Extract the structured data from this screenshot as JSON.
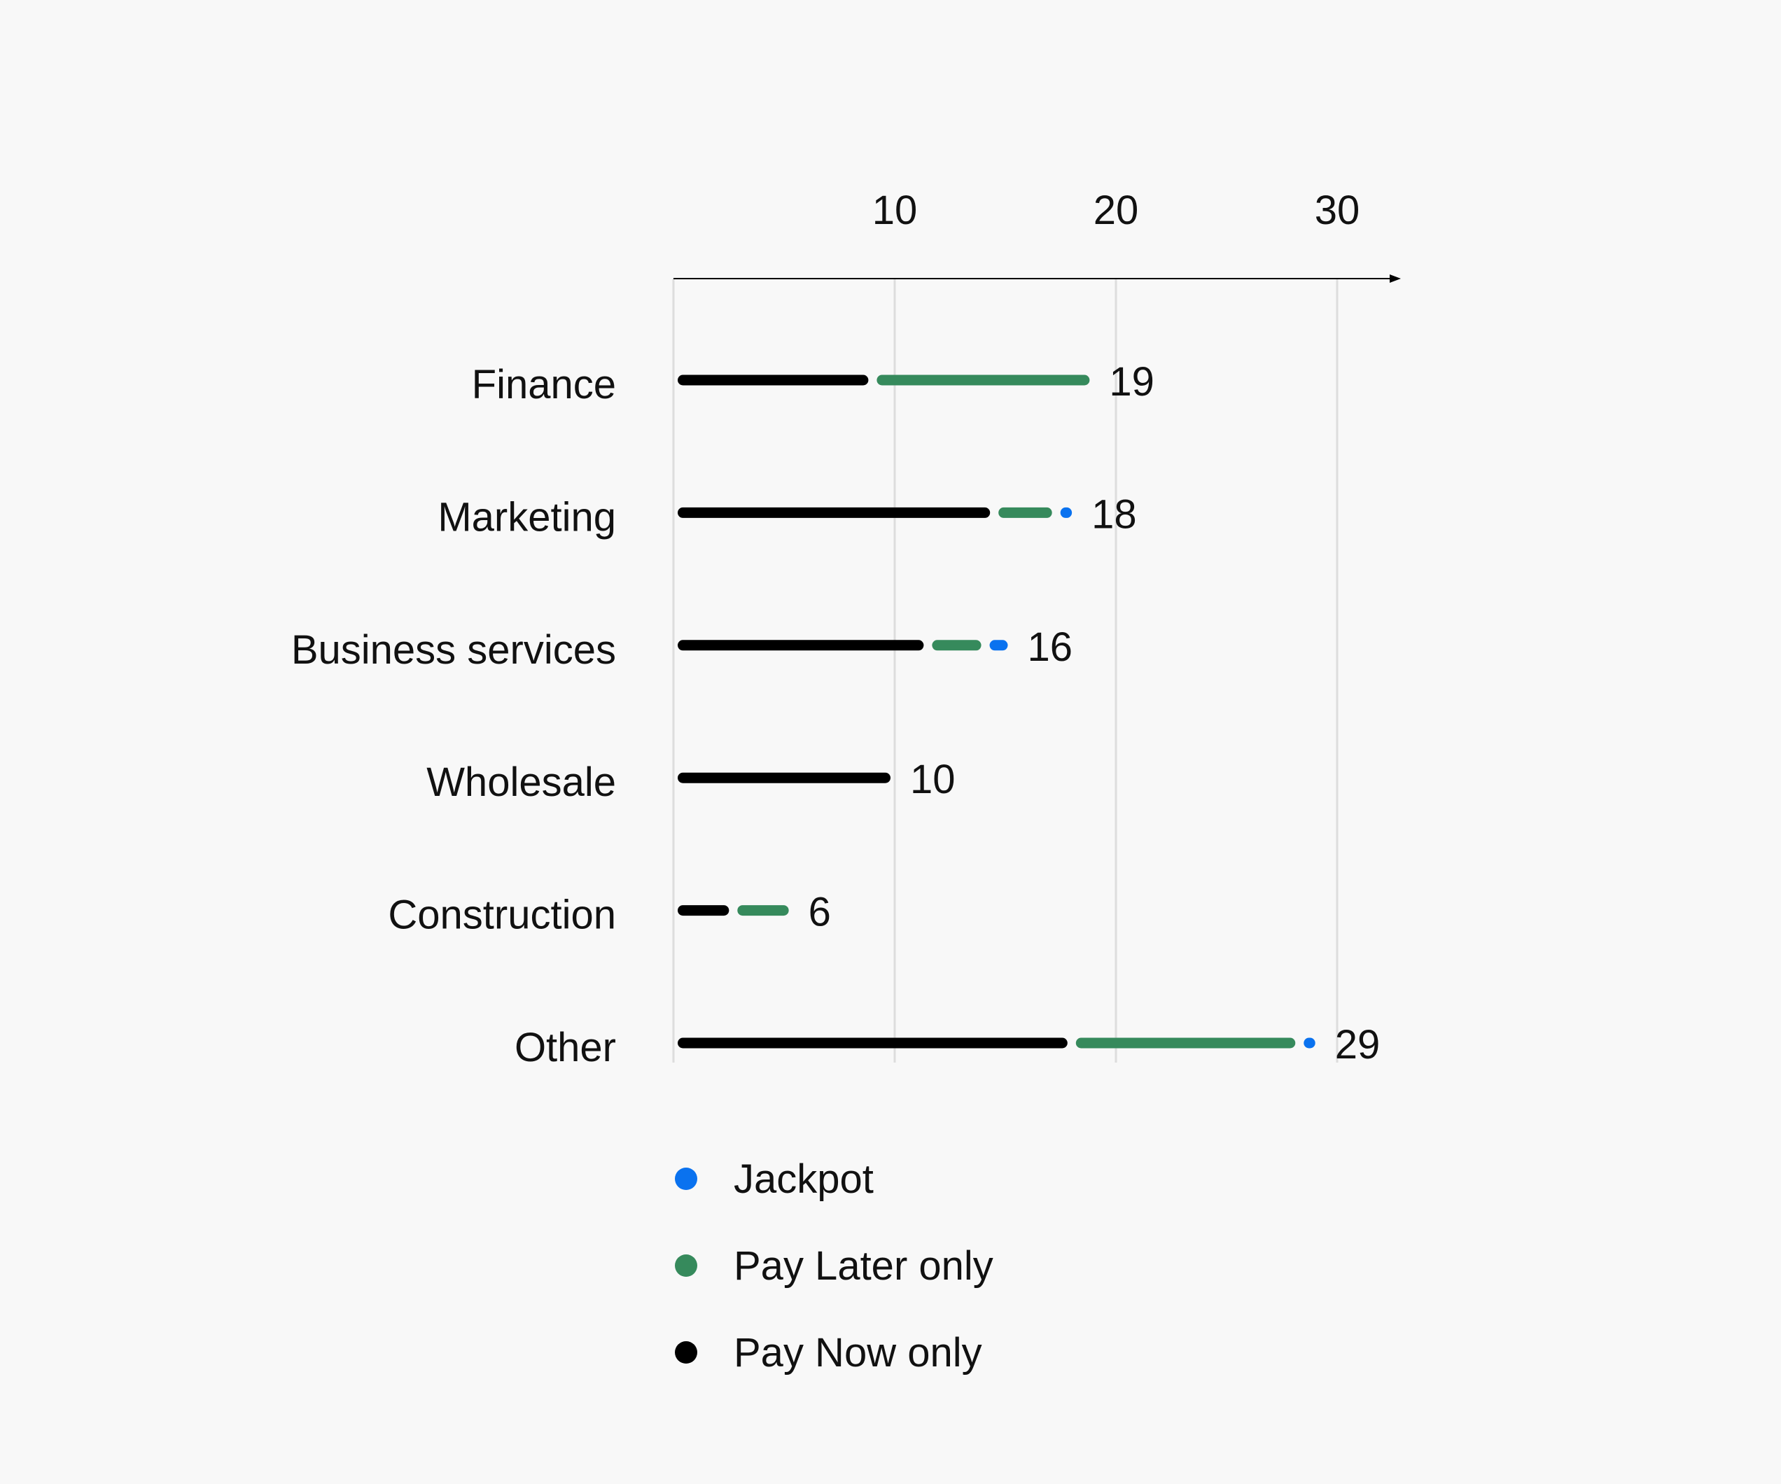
{
  "chart_data": {
    "type": "bar",
    "orientation": "horizontal",
    "stacked": true,
    "categories": [
      "Finance",
      "Marketing",
      "Business services",
      "Wholesale",
      "Construction",
      "Other"
    ],
    "series": [
      {
        "name": "Pay Now only",
        "color": "#000000",
        "values": [
          9,
          14.5,
          11.5,
          10,
          2.7,
          18
        ]
      },
      {
        "name": "Pay Later only",
        "color": "#368a5c",
        "values": [
          10,
          2.8,
          2.6,
          0,
          2.7,
          10.3
        ]
      },
      {
        "name": "Jackpot",
        "color": "#0a72ef",
        "values": [
          0,
          0.9,
          1.2,
          0,
          0,
          0.9
        ]
      }
    ],
    "totals": [
      "19",
      "18",
      "16",
      "10",
      "6",
      "29"
    ],
    "x_ticks": [
      "10",
      "20",
      "30"
    ],
    "x_tick_values": [
      10,
      20,
      30
    ],
    "gridlines_at": [
      0,
      10,
      20,
      30
    ],
    "xlim": [
      0,
      32.5
    ],
    "legend": {
      "position": "bottom",
      "entries": [
        {
          "label": "Jackpot",
          "color": "#0a72ef"
        },
        {
          "label": "Pay Later only",
          "color": "#368a5c"
        },
        {
          "label": "Pay Now only",
          "color": "#000000"
        }
      ]
    },
    "grid": true,
    "title": "",
    "xlabel": "",
    "ylabel": ""
  }
}
